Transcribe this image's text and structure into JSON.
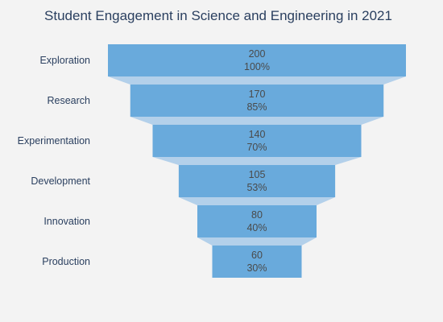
{
  "chart_data": {
    "type": "funnel",
    "title": "Student Engagement in Science and Engineering in 2021",
    "categories": [
      "Exploration",
      "Research",
      "Experimentation",
      "Development",
      "Innovation",
      "Production"
    ],
    "values": [
      200,
      170,
      140,
      105,
      80,
      60
    ],
    "percent_labels": [
      "100%",
      "85%",
      "70%",
      "53%",
      "40%",
      "30%"
    ],
    "bar_color": "#69aadc",
    "connector_color": "#b3d0ea"
  }
}
